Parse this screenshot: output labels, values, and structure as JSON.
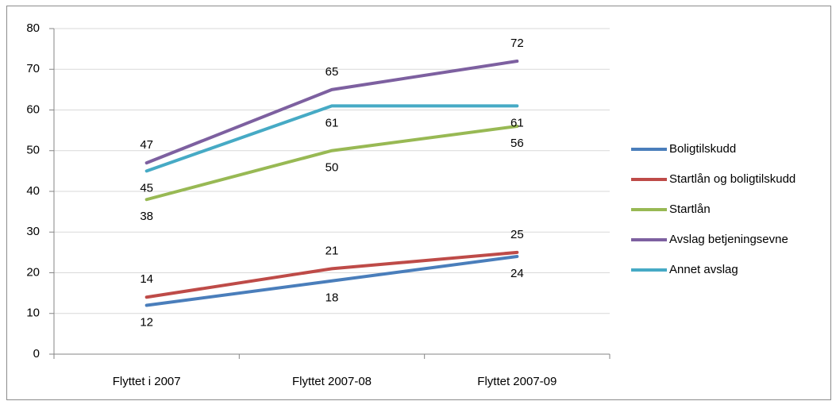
{
  "chart_data": {
    "type": "line",
    "categories": [
      "Flyttet i 2007",
      "Flyttet 2007-08",
      "Flyttet 2007-09"
    ],
    "series": [
      {
        "name": "Boligtilskudd",
        "color": "#4a7ebb",
        "values": [
          12,
          18,
          24
        ],
        "label_position": "below"
      },
      {
        "name": "Startlån og boligtilskudd",
        "color": "#be4b48",
        "values": [
          14,
          21,
          25
        ],
        "label_position": "above"
      },
      {
        "name": "Startlån",
        "color": "#98b954",
        "values": [
          38,
          50,
          56
        ],
        "label_position": "below"
      },
      {
        "name": "Avslag betjeningsevne",
        "color": "#7d60a0",
        "values": [
          47,
          65,
          72
        ],
        "label_position": "above"
      },
      {
        "name": "Annet avslag",
        "color": "#46aac5",
        "values": [
          45,
          61,
          61
        ],
        "label_position": "below"
      }
    ],
    "ylim": [
      0,
      80
    ],
    "yticks": [
      0,
      10,
      20,
      30,
      40,
      50,
      60,
      70,
      80
    ],
    "grid": true,
    "data_labels": true,
    "legend": "right"
  }
}
